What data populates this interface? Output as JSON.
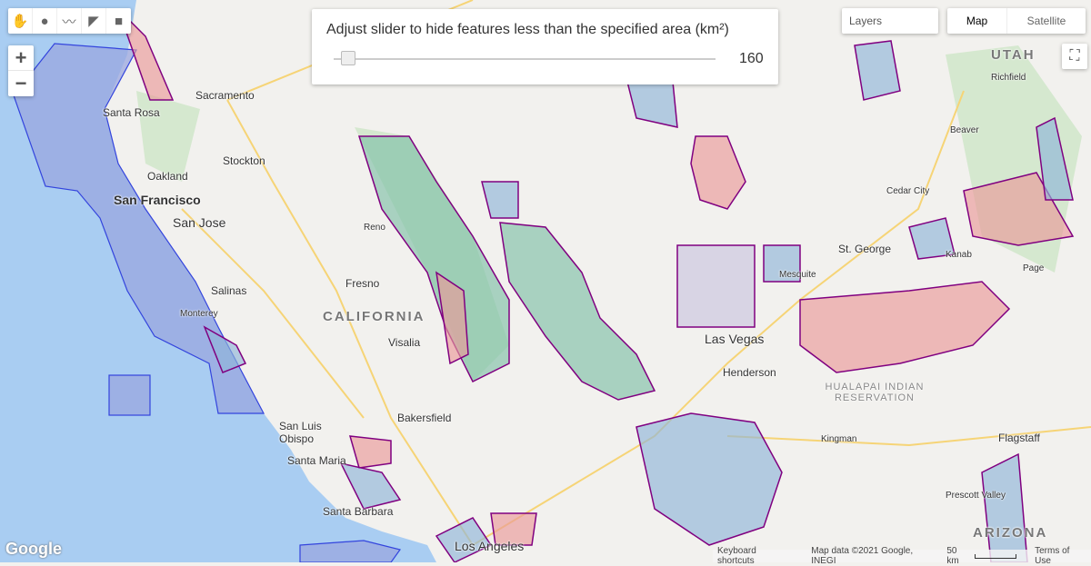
{
  "toolbar": {
    "tools": [
      {
        "icon": "hand-icon",
        "glyph": "✋"
      },
      {
        "icon": "marker-icon",
        "glyph": "●"
      },
      {
        "icon": "polyline-icon",
        "glyph": "〰"
      },
      {
        "icon": "polygon-icon",
        "glyph": "◤"
      },
      {
        "icon": "rectangle-icon",
        "glyph": "■"
      }
    ]
  },
  "zoom": {
    "in": "+",
    "out": "−"
  },
  "slider": {
    "title": "Adjust slider to hide features less than the specified area (km²)",
    "value": "160",
    "min_fraction": 0.0
  },
  "layers": {
    "label": "Layers"
  },
  "map_type": {
    "map": "Map",
    "satellite": "Satellite",
    "selected": "Map"
  },
  "labels": {
    "sacramento": "Sacramento",
    "santa_rosa": "Santa Rosa",
    "stockton": "Stockton",
    "oakland": "Oakland",
    "san_francisco": "San Francisco",
    "san_jose": "San Jose",
    "fresno": "Fresno",
    "california": "CALIFORNIA",
    "salinas": "Salinas",
    "monterey": "Monterey",
    "visalia": "Visalia",
    "bakersfield": "Bakersfield",
    "san_luis_obispo": "San Luis Obispo",
    "santa_maria": "Santa Maria",
    "santa_barbara": "Santa Barbara",
    "los_angeles": "Los Angeles",
    "las_vegas": "Las Vegas",
    "henderson": "Henderson",
    "mesquite": "Mesquite",
    "st_george": "St. George",
    "utah": "UTAH",
    "richfield": "Richfield",
    "beaver": "Beaver",
    "cedar_city": "Cedar City",
    "kanab": "Kanab",
    "page": "Page",
    "kingman": "Kingman",
    "flagstaff": "Flagstaff",
    "prescott_valley": "Prescott Valley",
    "hualapai": "HUALAPAI INDIAN RESERVATION",
    "arizona": "ARIZONA",
    "reno": "Reno"
  },
  "footer": {
    "logo": "Google",
    "shortcuts": "Keyboard shortcuts",
    "map_data": "Map data ©2021 Google, INEGI",
    "scale": "50 km",
    "terms": "Terms of Use"
  },
  "colors": {
    "ocean": "#a9cdf2",
    "land": "#f2f1ee",
    "blue_feature": "#8fb6d8",
    "pink_feature": "#e99a9a",
    "green_feature": "#7fc0a8",
    "stroke": "#800080",
    "sanctuary": "#9aa6df"
  }
}
